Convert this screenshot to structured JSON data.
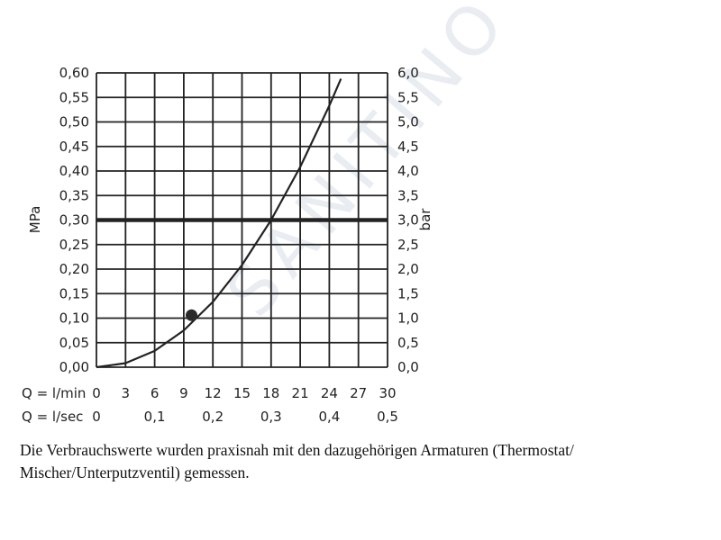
{
  "chart_data": {
    "type": "line",
    "ylabel_left": "MPa",
    "ylabel_right": "bar",
    "xlim": [
      0,
      30
    ],
    "ylim": [
      0,
      0.6
    ],
    "grid": true,
    "y_ticks_left": [
      "0,00",
      "0,05",
      "0,10",
      "0,15",
      "0,20",
      "0,25",
      "0,30",
      "0,35",
      "0,40",
      "0,45",
      "0,50",
      "0,55",
      "0,60"
    ],
    "y_ticks_right": [
      "0,0",
      "0,5",
      "1,0",
      "1,5",
      "2,0",
      "2,5",
      "3,0",
      "3,5",
      "4,0",
      "4,5",
      "5,0",
      "5,5",
      "6,0"
    ],
    "x_rows": [
      {
        "label": "Q = l/min",
        "ticks": [
          "0",
          "3",
          "6",
          "9",
          "12",
          "15",
          "18",
          "21",
          "24",
          "27",
          "30"
        ],
        "positions": [
          0,
          3,
          6,
          9,
          12,
          15,
          18,
          21,
          24,
          27,
          30
        ]
      },
      {
        "label": "Q = l/sec",
        "ticks": [
          "0",
          "0,1",
          "0,2",
          "0,3",
          "0,4",
          "0,5"
        ],
        "positions": [
          0,
          6,
          12,
          18,
          24,
          30
        ]
      }
    ],
    "series": [
      {
        "x": [
          0,
          3,
          6,
          9,
          12,
          15,
          18,
          21,
          24,
          25.2
        ],
        "y": [
          0,
          0.0083,
          0.0333,
          0.075,
          0.1333,
          0.2083,
          0.3,
          0.4083,
          0.5333,
          0.588
        ]
      }
    ],
    "reference_line": {
      "y": 0.3
    },
    "marker": {
      "x": 9.8,
      "y": 0.106
    },
    "guide": {
      "x": 18,
      "y": 0.3
    }
  },
  "caption": "Die Verbrauchswerte wurden praxisnah mit den dazugehörigen Armaturen (Thermostat/ Mischer/Unterputzventil) gemessen.",
  "watermark": "SANITINO"
}
